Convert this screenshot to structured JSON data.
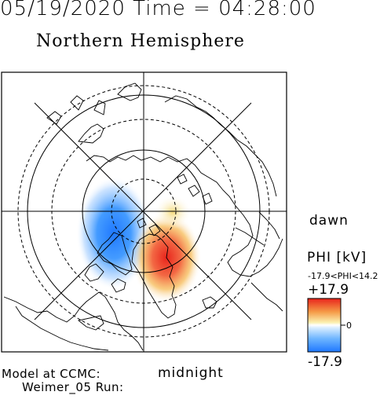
{
  "header": {
    "date_time": "05/19/2020 Time = 04:28:00",
    "title": "Northern Hemisphere"
  },
  "map": {
    "projection": "polar",
    "hemisphere": "north",
    "labels": {
      "dawn": "dawn",
      "midnight": "midnight"
    },
    "potential_cells": [
      {
        "sign": "negative",
        "color": "#1f78ff",
        "quadrant": "dusk-midnight"
      },
      {
        "sign": "positive",
        "color": "#e8241c",
        "quadrant": "dawn-midnight"
      }
    ]
  },
  "colorbar": {
    "title": "PHI [kV]",
    "range_text": "-17.9<PHI<14.2",
    "max_label": "+17.9",
    "min_label": "-17.9",
    "zero_label": "0",
    "colors": [
      "#e8241c",
      "#ffffff",
      "#1f78ff"
    ]
  },
  "footer": {
    "line1": "Model at CCMC:",
    "line2": "Weimer_05 Run:"
  }
}
